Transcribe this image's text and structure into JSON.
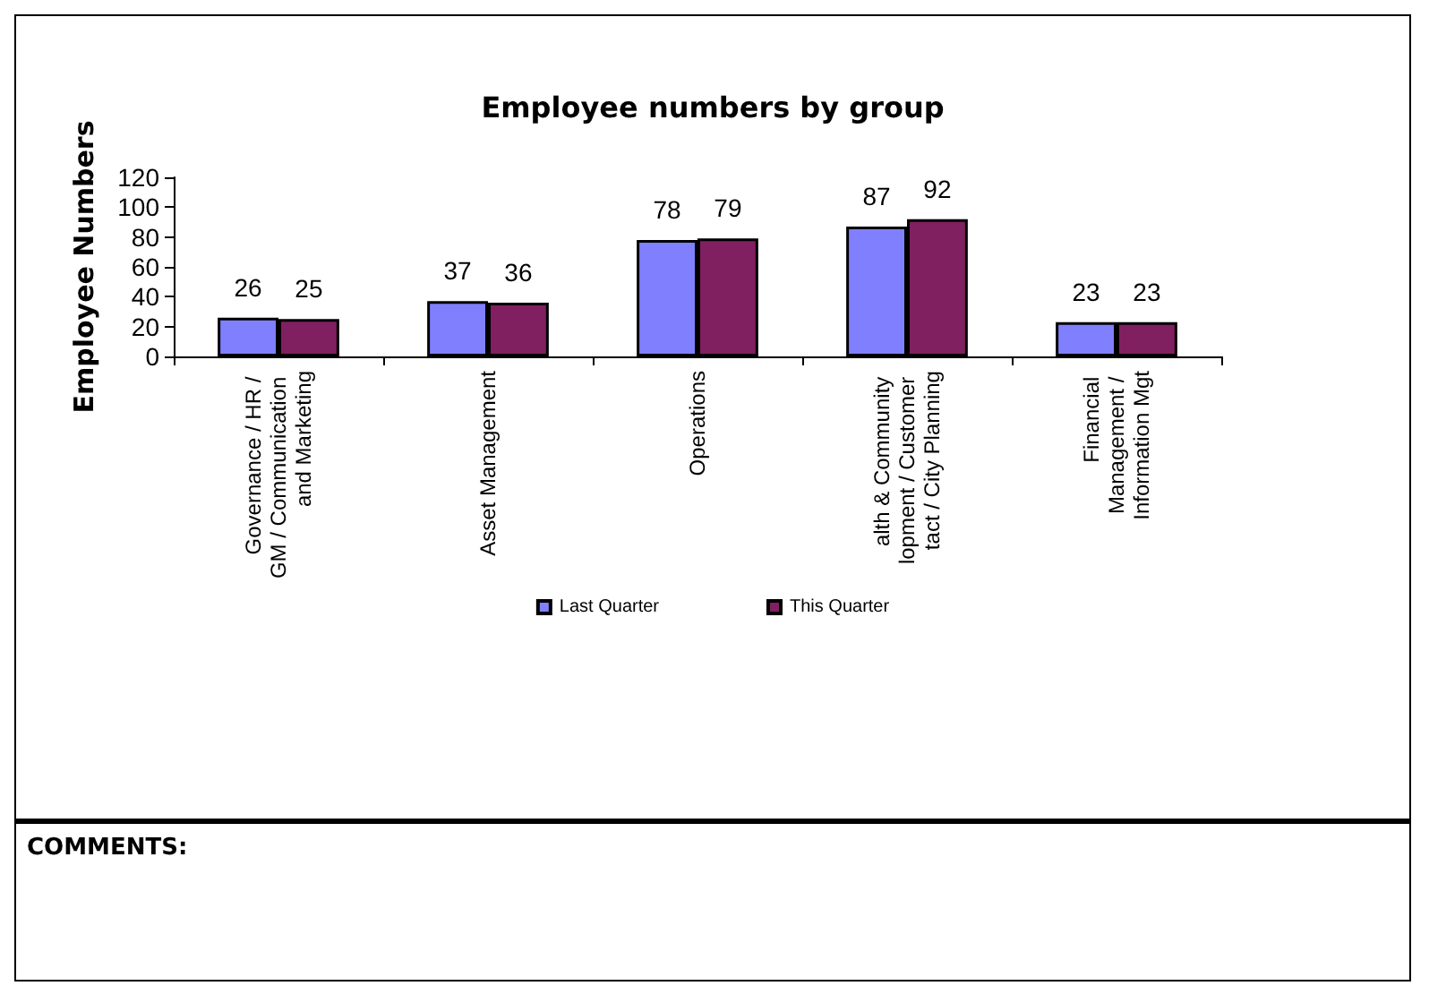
{
  "chart_data": {
    "type": "bar",
    "title": "Employee numbers by group",
    "ylabel": "Employee Numbers",
    "categories": [
      "Governance / HR / GM / Communication and Marketing",
      "Asset Management",
      "Operations",
      "alth & Community lopment / Customer tact / City Planning",
      "Financial Management / Information Mgt"
    ],
    "series": [
      {
        "name": "Last Quarter",
        "color": "#8080ff",
        "values": [
          26,
          37,
          78,
          87,
          23
        ]
      },
      {
        "name": "This Quarter",
        "color": "#802060",
        "values": [
          25,
          36,
          79,
          92,
          23
        ]
      }
    ],
    "ylim": [
      0,
      120
    ],
    "yticks": [
      0,
      20,
      40,
      60,
      80,
      100,
      120
    ],
    "grid": false,
    "legend": "bottom",
    "data_labels": true,
    "annotations": [
      "COMMENTS:"
    ]
  }
}
